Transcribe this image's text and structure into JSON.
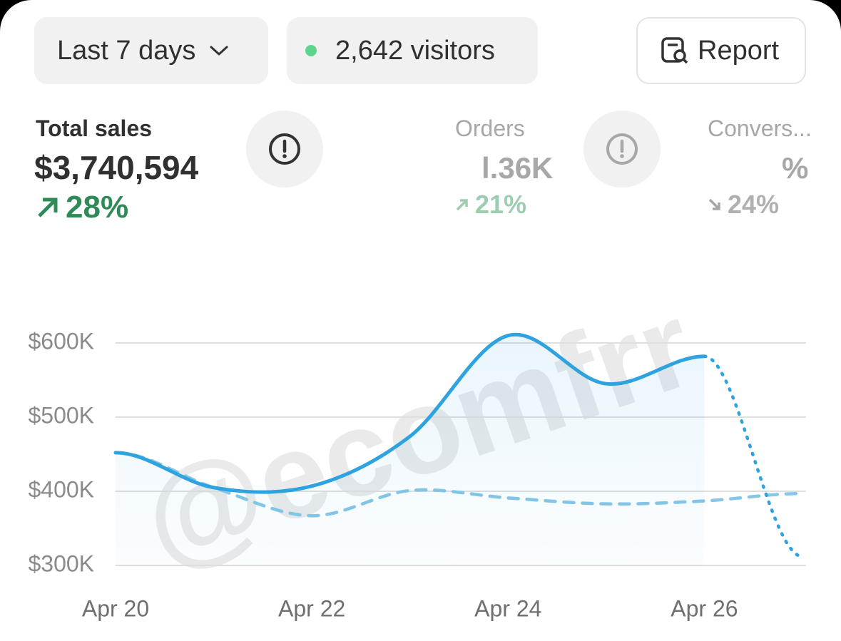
{
  "toolbar": {
    "range": "Last 7 days",
    "visitors": "2,642 visitors",
    "report": "Report"
  },
  "metrics": [
    {
      "label": "Total sales",
      "value": "$3,740,594",
      "change": "28%"
    },
    {
      "label": "Orders",
      "value": "l.36K",
      "change": "21%"
    },
    {
      "label": "Convers...",
      "value": "%",
      "change": "24%"
    }
  ],
  "watermark": "@ecomfrr",
  "chart_data": {
    "type": "line",
    "categories": [
      "Apr 20",
      null,
      "Apr 22",
      null,
      "Apr 24",
      null,
      "Apr 26",
      null
    ],
    "series": [
      {
        "color": "#2ea3e0",
        "style": "solid",
        "area": true,
        "values": [
          452000,
          405000,
          407000,
          474000,
          610000,
          545000,
          582000,
          null
        ]
      },
      {
        "color": "#2ea3e0",
        "style": "dotted",
        "values": [
          null,
          null,
          null,
          null,
          null,
          null,
          582000,
          312000
        ]
      },
      {
        "color": "#86c6e6",
        "style": "dashed",
        "values": [
          452000,
          405000,
          367000,
          401000,
          391000,
          383000,
          387000,
          397000
        ]
      }
    ],
    "ylim": [
      300000,
      600000
    ],
    "yticks": [
      {
        "value": 300000,
        "label": "$300K"
      },
      {
        "value": 400000,
        "label": "$400K"
      },
      {
        "value": 500000,
        "label": "$500K"
      },
      {
        "value": 600000,
        "label": "$600K"
      }
    ],
    "grid": true
  }
}
